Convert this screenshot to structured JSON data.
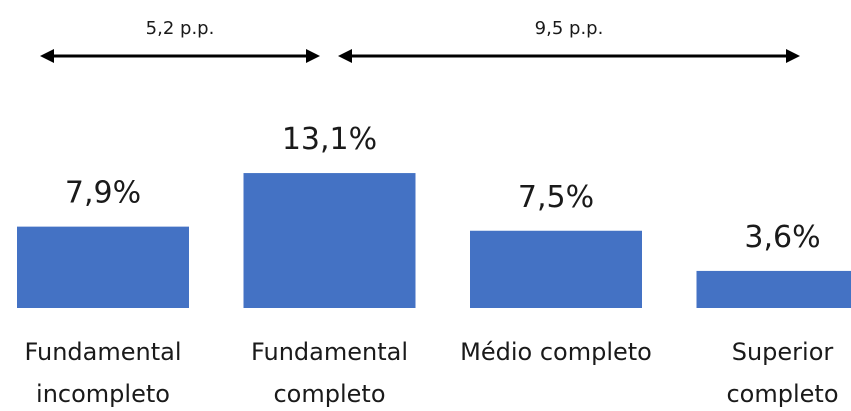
{
  "chart_data": {
    "type": "bar",
    "categories": [
      [
        "Fundamental",
        "incompleto"
      ],
      [
        "Fundamental",
        "completo"
      ],
      [
        "Médio completo"
      ],
      [
        "Superior",
        "completo"
      ]
    ],
    "values": [
      7.9,
      13.1,
      7.5,
      3.6
    ],
    "data_labels": [
      "7,9%",
      "13,1%",
      "7,5%",
      "3,6%"
    ],
    "bar_color": "#4472C4",
    "grid": false,
    "annotations": [
      {
        "text": "5,2 p.p.",
        "from_category": 0,
        "to_category": 1
      },
      {
        "text": "9,5 p.p.",
        "from_category": 1,
        "to_category": 3
      }
    ]
  }
}
